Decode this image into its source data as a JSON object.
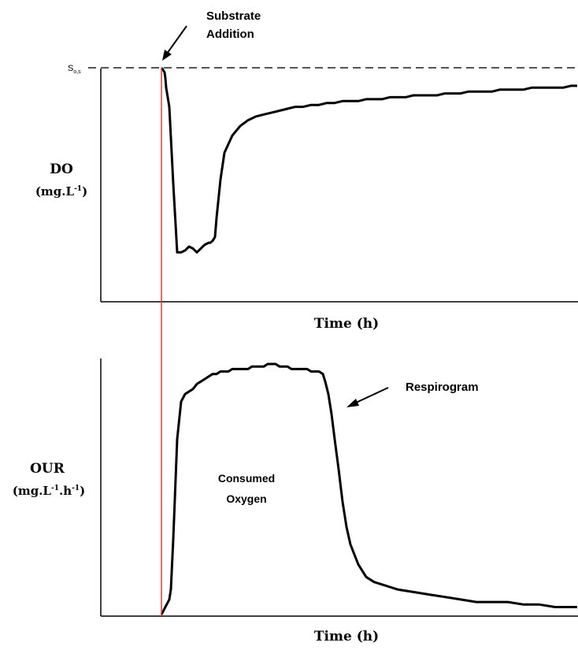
{
  "chart_data": [
    {
      "type": "line",
      "panel": "top",
      "ylabel": "DO",
      "ylabel_units": {
        "base": "(mg.L",
        "sup": "-1",
        "close": ")"
      },
      "xlabel": "Time (h)",
      "reference_line": {
        "label_base": "S",
        "label_sub": "o,s",
        "style": "dashed"
      },
      "event": {
        "label_line1": "Substrate",
        "label_line2": "Addition"
      },
      "series": [
        {
          "x": [
            0,
            1,
            4,
            5,
            6,
            10,
            15,
            20,
            25,
            30,
            35,
            40,
            45,
            50,
            55,
            60,
            62,
            65,
            68,
            70,
            75,
            80,
            90,
            100,
            110,
            120,
            130,
            140,
            150,
            160,
            170,
            180,
            190,
            200,
            210,
            220,
            230,
            240,
            250,
            260,
            270,
            280,
            290,
            300,
            310,
            320,
            330,
            340,
            350,
            360,
            370,
            380,
            390,
            400,
            410,
            420,
            430,
            440,
            450,
            460,
            470,
            480,
            490,
            500,
            510,
            520,
            528
          ],
          "y": [
            100,
            100,
            98,
            95,
            90,
            80,
            40,
            4,
            4,
            5,
            7,
            6,
            4,
            6,
            8,
            9,
            9,
            10,
            12,
            22,
            42,
            56,
            65,
            70,
            73,
            75,
            76,
            77,
            78,
            79,
            80,
            80,
            81,
            81,
            82,
            82,
            83,
            83,
            83,
            84,
            84,
            84,
            85,
            85,
            85,
            86,
            86,
            86,
            86,
            87,
            87,
            87,
            88,
            88,
            88,
            88,
            89,
            89,
            89,
            89,
            90,
            90,
            90,
            90,
            90,
            91,
            91
          ]
        }
      ]
    },
    {
      "type": "line",
      "panel": "bottom",
      "ylabel": "OUR",
      "ylabel_units": {
        "base": "(mg.L",
        "sup1": "-1",
        "mid": ".h",
        "sup2": "-1",
        "close": ")"
      },
      "xlabel": "Time (h)",
      "annotations": [
        {
          "id": "area",
          "line1": "Consumed",
          "line2": "Oxygen"
        },
        {
          "id": "curve",
          "text": "Respirogram"
        }
      ],
      "series": [
        {
          "x": [
            0,
            10,
            12,
            15,
            20,
            25,
            30,
            35,
            40,
            45,
            50,
            55,
            60,
            65,
            70,
            75,
            80,
            85,
            90,
            95,
            100,
            105,
            110,
            115,
            120,
            125,
            130,
            135,
            140,
            145,
            150,
            155,
            160,
            165,
            170,
            175,
            180,
            185,
            190,
            195,
            200,
            205,
            206,
            208,
            212,
            216,
            220,
            225,
            230,
            235,
            240,
            250,
            260,
            270,
            280,
            290,
            300,
            320,
            340,
            360,
            380,
            400,
            420,
            440,
            460,
            480,
            500,
            510,
            528
          ],
          "y": [
            0,
            6,
            10,
            30,
            70,
            85,
            88,
            89,
            90,
            92,
            93,
            94,
            95,
            96,
            96,
            97,
            97,
            97,
            98,
            98,
            98,
            98,
            98,
            99,
            99,
            99,
            99,
            100,
            100,
            100,
            99,
            99,
            99,
            98,
            98,
            98,
            98,
            98,
            97,
            97,
            97,
            96,
            95,
            93,
            88,
            80,
            70,
            58,
            45,
            35,
            28,
            20,
            15,
            13,
            12,
            11,
            10,
            9,
            8,
            7,
            6,
            5,
            5,
            5,
            4,
            4,
            3,
            3,
            3
          ]
        }
      ]
    }
  ]
}
